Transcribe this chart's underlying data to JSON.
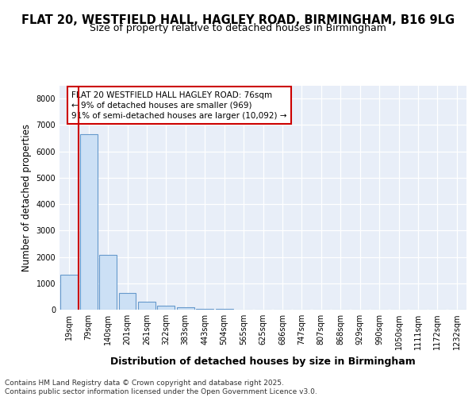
{
  "title_line1": "FLAT 20, WESTFIELD HALL, HAGLEY ROAD, BIRMINGHAM, B16 9LG",
  "title_line2": "Size of property relative to detached houses in Birmingham",
  "xlabel": "Distribution of detached houses by size in Birmingham",
  "ylabel": "Number of detached properties",
  "categories": [
    "19sqm",
    "79sqm",
    "140sqm",
    "201sqm",
    "261sqm",
    "322sqm",
    "383sqm",
    "443sqm",
    "504sqm",
    "565sqm",
    "625sqm",
    "686sqm",
    "747sqm",
    "807sqm",
    "868sqm",
    "929sqm",
    "990sqm",
    "1050sqm",
    "1111sqm",
    "1172sqm",
    "1232sqm"
  ],
  "values": [
    1320,
    6650,
    2090,
    640,
    300,
    145,
    80,
    40,
    20,
    10,
    5,
    0,
    0,
    0,
    0,
    0,
    0,
    0,
    0,
    0,
    0
  ],
  "bar_color": "#cce0f5",
  "bar_edge_color": "#6699cc",
  "plot_bg_color": "#e8eef8",
  "fig_bg_color": "#ffffff",
  "grid_color": "#ffffff",
  "annotation_text": "FLAT 20 WESTFIELD HALL HAGLEY ROAD: 76sqm\n← 9% of detached houses are smaller (969)\n91% of semi-detached houses are larger (10,092) →",
  "annotation_box_facecolor": "#ffffff",
  "annotation_box_edgecolor": "#cc0000",
  "vline_color": "#cc0000",
  "vline_x": 0.5,
  "ylim": [
    0,
    8500
  ],
  "yticks": [
    0,
    1000,
    2000,
    3000,
    4000,
    5000,
    6000,
    7000,
    8000
  ],
  "footnote": "Contains HM Land Registry data © Crown copyright and database right 2025.\nContains public sector information licensed under the Open Government Licence v3.0.",
  "title1_fontsize": 10.5,
  "title2_fontsize": 9,
  "ylabel_fontsize": 8.5,
  "xlabel_fontsize": 9,
  "tick_fontsize": 7,
  "annotation_fontsize": 7.5,
  "footnote_fontsize": 6.5
}
